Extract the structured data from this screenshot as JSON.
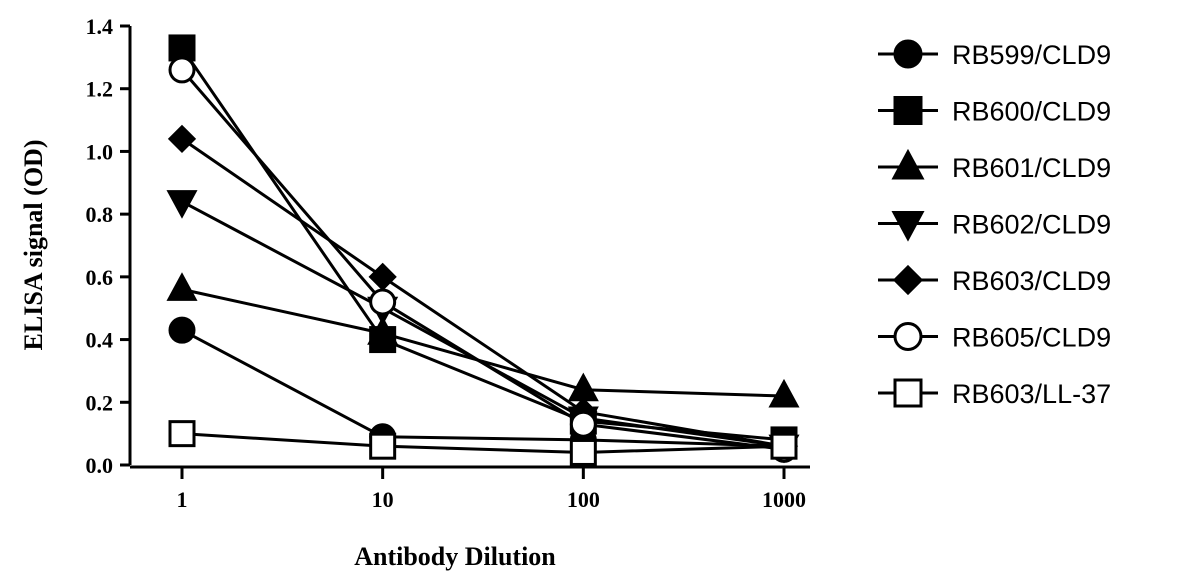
{
  "chart_data": {
    "type": "line",
    "title": "",
    "xlabel": "Antibody Dilution",
    "ylabel": "ELISA signal (OD)",
    "x": [
      1,
      10,
      100,
      1000
    ],
    "x_tick_labels": [
      "1",
      "10",
      "100",
      "1000"
    ],
    "x_scale": "log",
    "ylim": [
      0,
      1.4
    ],
    "y_ticks": [
      "0.0",
      "0.2",
      "0.4",
      "0.6",
      "0.8",
      "1.0",
      "1.2",
      "1.4"
    ],
    "grid": false,
    "legend_placement": "right",
    "series": [
      {
        "name": "RB599/CLD9",
        "marker": "circle-filled",
        "values": [
          0.43,
          0.09,
          0.08,
          0.06
        ]
      },
      {
        "name": "RB600/CLD9",
        "marker": "square-filled",
        "values": [
          1.33,
          0.4,
          0.14,
          0.08
        ]
      },
      {
        "name": "RB601/CLD9",
        "marker": "triangle-up-filled",
        "values": [
          0.56,
          0.42,
          0.24,
          0.22
        ]
      },
      {
        "name": "RB602/CLD9",
        "marker": "triangle-down-filled",
        "values": [
          0.84,
          0.5,
          0.15,
          0.06
        ]
      },
      {
        "name": "RB603/CLD9",
        "marker": "diamond-filled",
        "values": [
          1.04,
          0.6,
          0.17,
          0.06
        ]
      },
      {
        "name": "RB605/CLD9",
        "marker": "circle-open",
        "values": [
          1.26,
          0.52,
          0.13,
          0.05
        ]
      },
      {
        "name": "RB603/LL-37",
        "marker": "square-open",
        "values": [
          0.1,
          0.06,
          0.04,
          0.06
        ]
      }
    ]
  }
}
